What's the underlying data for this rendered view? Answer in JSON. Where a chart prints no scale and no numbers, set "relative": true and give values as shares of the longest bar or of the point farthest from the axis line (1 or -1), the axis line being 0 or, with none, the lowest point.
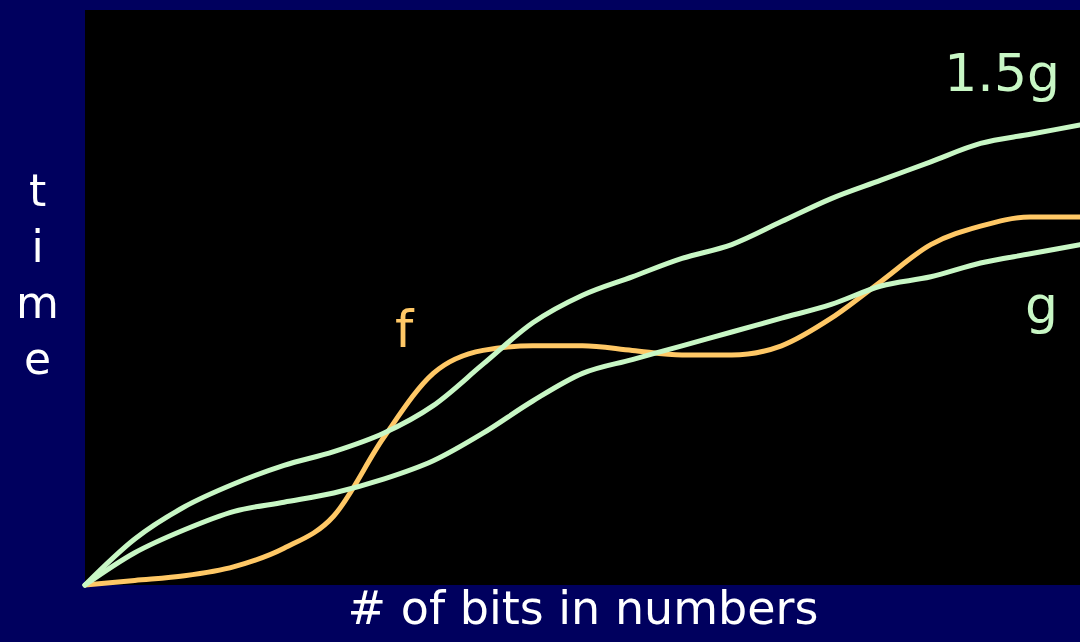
{
  "chart_data": {
    "type": "line",
    "relative": true,
    "xlabel": "# of bits in numbers",
    "ylabel": "time",
    "grid": false,
    "line_style": "solid",
    "marker": "none",
    "categories": [
      null,
      null,
      null,
      null,
      null,
      null,
      null,
      null,
      null,
      null,
      null,
      null,
      null,
      null,
      null,
      null,
      null,
      null,
      null,
      null,
      null
    ],
    "series": [
      {
        "name": "f",
        "color": "#ffc866",
        "values": [
          0,
          0.01,
          0.02,
          0.04,
          0.08,
          0.15,
          0.32,
          0.46,
          0.51,
          0.52,
          0.52,
          0.51,
          0.5,
          0.5,
          0.52,
          0.58,
          0.66,
          0.74,
          0.78,
          0.8,
          0.8
        ]
      },
      {
        "name": "g",
        "color": "#c8f7c5",
        "values": [
          0,
          0.07,
          0.12,
          0.16,
          0.18,
          0.2,
          0.23,
          0.27,
          0.33,
          0.4,
          0.46,
          0.49,
          0.52,
          0.55,
          0.58,
          0.61,
          0.65,
          0.67,
          0.7,
          0.72,
          0.74
        ]
      },
      {
        "name": "1.5g",
        "color": "#c8f7c5",
        "values": [
          0,
          0.1,
          0.17,
          0.22,
          0.26,
          0.29,
          0.33,
          0.39,
          0.48,
          0.57,
          0.63,
          0.67,
          0.71,
          0.74,
          0.79,
          0.84,
          0.88,
          0.92,
          0.96,
          0.98,
          1
        ]
      }
    ]
  }
}
